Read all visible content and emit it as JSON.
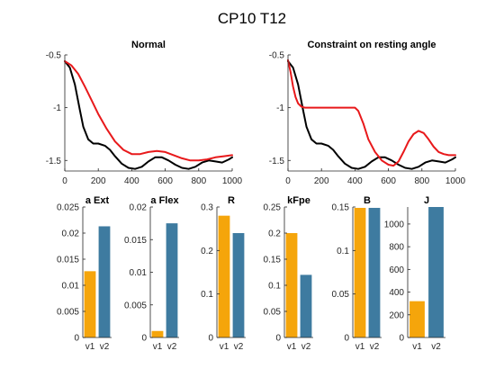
{
  "figure": {
    "title": "CP10 T12"
  },
  "colors": {
    "black": "#000000",
    "red": "#E8191B",
    "v1": "#F5A50B",
    "v2": "#3E7BA0"
  },
  "chart_data": [
    {
      "type": "line",
      "title": "Normal",
      "xlim": [
        0,
        1000
      ],
      "ylim": [
        -1.6,
        -0.5
      ],
      "xticks": [
        0,
        200,
        400,
        600,
        800,
        1000
      ],
      "yticks": [
        -1.5,
        -1,
        -0.5
      ],
      "xtick_labels": [
        "0",
        "200",
        "400",
        "600",
        "800",
        "1000"
      ],
      "ytick_labels": [
        "-1.5",
        "-1",
        "-0.5"
      ],
      "series": [
        {
          "name": "black",
          "color": "#000000",
          "x": [
            0,
            30,
            60,
            90,
            110,
            140,
            170,
            200,
            240,
            270,
            300,
            340,
            380,
            420,
            460,
            500,
            540,
            580,
            620,
            660,
            700,
            740,
            780,
            820,
            860,
            900,
            940,
            980,
            1000
          ],
          "y": [
            -0.56,
            -0.62,
            -0.78,
            -1.02,
            -1.18,
            -1.3,
            -1.34,
            -1.34,
            -1.36,
            -1.4,
            -1.46,
            -1.53,
            -1.57,
            -1.58,
            -1.56,
            -1.51,
            -1.47,
            -1.47,
            -1.5,
            -1.54,
            -1.57,
            -1.58,
            -1.56,
            -1.52,
            -1.5,
            -1.51,
            -1.52,
            -1.49,
            -1.47
          ]
        },
        {
          "name": "red",
          "color": "#E8191B",
          "x": [
            0,
            40,
            80,
            120,
            160,
            200,
            250,
            300,
            350,
            400,
            450,
            500,
            550,
            600,
            650,
            700,
            750,
            800,
            850,
            900,
            950,
            1000
          ],
          "y": [
            -0.56,
            -0.6,
            -0.68,
            -0.8,
            -0.93,
            -1.06,
            -1.2,
            -1.32,
            -1.4,
            -1.44,
            -1.44,
            -1.42,
            -1.41,
            -1.42,
            -1.45,
            -1.48,
            -1.5,
            -1.5,
            -1.49,
            -1.47,
            -1.46,
            -1.45
          ]
        }
      ]
    },
    {
      "type": "line",
      "title": "Constraint on resting angle",
      "xlim": [
        0,
        1000
      ],
      "ylim": [
        -1.6,
        -0.5
      ],
      "xticks": [
        0,
        200,
        400,
        600,
        800,
        1000
      ],
      "yticks": [
        -1.5,
        -1,
        -0.5
      ],
      "xtick_labels": [
        "0",
        "200",
        "400",
        "600",
        "800",
        "1000"
      ],
      "ytick_labels": [
        "-1.5",
        "-1",
        "-0.5"
      ],
      "series": [
        {
          "name": "black",
          "color": "#000000",
          "x": [
            0,
            30,
            60,
            90,
            110,
            140,
            170,
            200,
            240,
            270,
            300,
            340,
            380,
            420,
            460,
            500,
            540,
            580,
            620,
            660,
            700,
            740,
            780,
            820,
            860,
            900,
            940,
            980,
            1000
          ],
          "y": [
            -0.56,
            -0.62,
            -0.78,
            -1.02,
            -1.18,
            -1.3,
            -1.34,
            -1.34,
            -1.36,
            -1.4,
            -1.46,
            -1.53,
            -1.57,
            -1.58,
            -1.56,
            -1.51,
            -1.47,
            -1.47,
            -1.5,
            -1.54,
            -1.57,
            -1.58,
            -1.56,
            -1.52,
            -1.5,
            -1.51,
            -1.52,
            -1.49,
            -1.47
          ]
        },
        {
          "name": "red",
          "color": "#E8191B",
          "x": [
            0,
            15,
            30,
            45,
            60,
            80,
            100,
            150,
            200,
            250,
            300,
            350,
            400,
            420,
            450,
            480,
            520,
            560,
            600,
            630,
            660,
            690,
            720,
            750,
            780,
            810,
            840,
            870,
            900,
            930,
            960,
            1000
          ],
          "y": [
            -0.55,
            -0.66,
            -0.8,
            -0.9,
            -0.96,
            -0.99,
            -1.0,
            -1.0,
            -1.0,
            -1.0,
            -1.0,
            -1.0,
            -1.0,
            -1.03,
            -1.15,
            -1.3,
            -1.42,
            -1.5,
            -1.54,
            -1.55,
            -1.51,
            -1.42,
            -1.32,
            -1.25,
            -1.22,
            -1.24,
            -1.3,
            -1.37,
            -1.42,
            -1.44,
            -1.45,
            -1.45
          ]
        }
      ]
    },
    {
      "type": "bar",
      "title": "a Ext",
      "categories": [
        "v1",
        "v2"
      ],
      "values": [
        0.0127,
        0.0213
      ],
      "ylim": [
        0,
        0.025
      ],
      "yticks": [
        0,
        0.005,
        0.01,
        0.015,
        0.02,
        0.025
      ],
      "ytick_labels": [
        "0",
        "0.005",
        "0.01",
        "0.015",
        "0.02",
        "0.025"
      ]
    },
    {
      "type": "bar",
      "title": "a Flex",
      "categories": [
        "v1",
        "v2"
      ],
      "values": [
        0.001,
        0.0175
      ],
      "ylim": [
        0,
        0.02
      ],
      "yticks": [
        0,
        0.005,
        0.01,
        0.015,
        0.02
      ],
      "ytick_labels": [
        "0",
        "0.005",
        "0.01",
        "0.015",
        "0.02"
      ]
    },
    {
      "type": "bar",
      "title": "R",
      "categories": [
        "v1",
        "v2"
      ],
      "values": [
        0.28,
        0.24
      ],
      "ylim": [
        0,
        0.3
      ],
      "yticks": [
        0,
        0.1,
        0.2,
        0.3
      ],
      "ytick_labels": [
        "0",
        "0.1",
        "0.2",
        "0.3"
      ]
    },
    {
      "type": "bar",
      "title": "kFpe",
      "categories": [
        "v1",
        "v2"
      ],
      "values": [
        0.2,
        0.12
      ],
      "ylim": [
        0,
        0.25
      ],
      "yticks": [
        0,
        0.05,
        0.1,
        0.15,
        0.2,
        0.25
      ],
      "ytick_labels": [
        "0",
        "0.05",
        "0.1",
        "0.15",
        "0.2",
        "0.25"
      ]
    },
    {
      "type": "bar",
      "title": "B",
      "categories": [
        "v1",
        "v2"
      ],
      "values": [
        0.149,
        0.149
      ],
      "ylim": [
        0,
        0.15
      ],
      "yticks": [
        0,
        0.05,
        0.1,
        0.15
      ],
      "ytick_labels": [
        "0",
        "0.05",
        "0.1",
        "0.15"
      ]
    },
    {
      "type": "bar",
      "title": "J",
      "categories": [
        "v1",
        "v2"
      ],
      "values": [
        320,
        1150
      ],
      "ylim": [
        0,
        1150
      ],
      "yticks": [
        0,
        200,
        400,
        600,
        800,
        1000
      ],
      "ytick_labels": [
        "0",
        "200",
        "400",
        "600",
        "800",
        "1000"
      ]
    }
  ]
}
